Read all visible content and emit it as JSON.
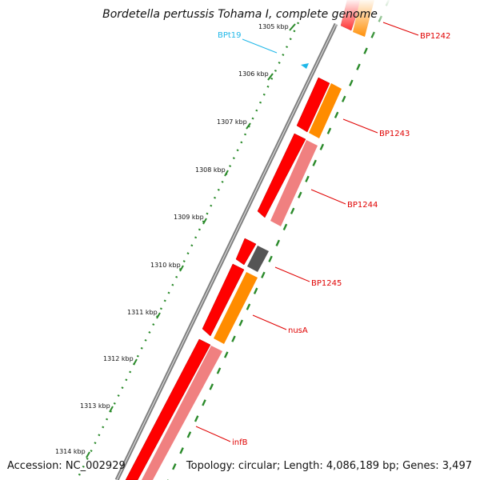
{
  "title": "Bordetella pertussis Tohama I, complete genome",
  "footer": {
    "accession": "Accession: NC_002929",
    "summary": "Topology: circular; Length: 4,086,189 bp; Genes: 3,497"
  },
  "ruler": {
    "labels": [
      "1305 kbp",
      "1306 kbp",
      "1307 kbp",
      "1308 kbp",
      "1309 kbp",
      "1310 kbp",
      "1311 kbp",
      "1312 kbp",
      "1313 kbp",
      "1314 kbp"
    ]
  },
  "genes": [
    {
      "label": "BP1242"
    },
    {
      "label": "BP1243"
    },
    {
      "label": "BP1244"
    },
    {
      "label": "BP1245"
    },
    {
      "label": "nusA"
    },
    {
      "label": "infB"
    }
  ],
  "features": [
    {
      "label": "BPt19"
    }
  ],
  "colors": {
    "backbone": "#7f7f7f",
    "cds": "#ff0000",
    "gene_orange": "#ff8c00",
    "gene_pink": "#f08080",
    "gene_gray": "#555555",
    "label_red": "#e00000",
    "feature_cyan": "#1fb7e8",
    "tick_green": "#2a8a2a"
  }
}
